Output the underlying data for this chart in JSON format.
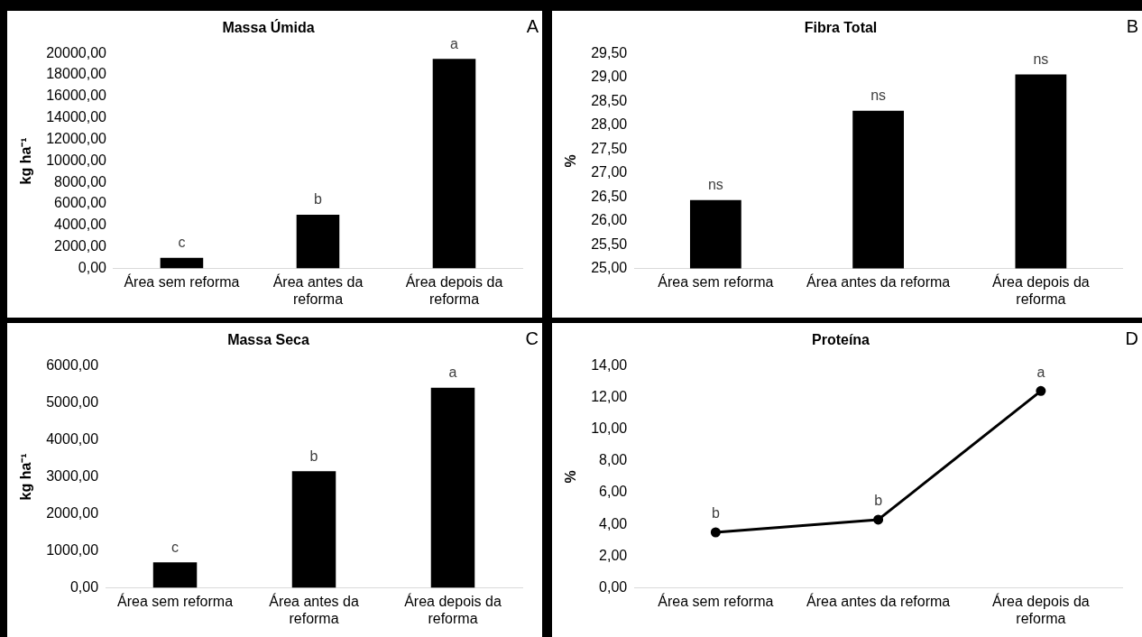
{
  "chart_data": [
    {
      "type": "bar",
      "title": "Massa Úmida",
      "ylabel": "kg ha⁻¹",
      "categories": [
        "Área sem reforma",
        "Área antes da reforma",
        "Área depois da reforma"
      ],
      "values": [
        1000,
        5000,
        19500
      ],
      "color": "#000000",
      "ylim": [
        0,
        20000
      ],
      "yticks": [
        {
          "value": 0,
          "label": "0,00"
        },
        {
          "value": 2000,
          "label": "2000,00"
        },
        {
          "value": 4000,
          "label": "4000,00"
        },
        {
          "value": 6000,
          "label": "6000,00"
        },
        {
          "value": 8000,
          "label": "8000,00"
        },
        {
          "value": 10000,
          "label": "10000,00"
        },
        {
          "value": 12000,
          "label": "12000,00"
        },
        {
          "value": 14000,
          "label": "14000,00"
        },
        {
          "value": 16000,
          "label": "16000,00"
        },
        {
          "value": 18000,
          "label": "18000,00"
        },
        {
          "value": 20000,
          "label": "20000,00"
        }
      ],
      "grid": false,
      "legend": false,
      "annotations": [
        "A",
        {
          "text": "c",
          "x": "Área sem reforma",
          "y": 1000
        },
        {
          "text": "b",
          "x": "Área antes da reforma",
          "y": 5000
        },
        {
          "text": "a",
          "x": "Área depois da reforma",
          "y": 19500
        }
      ]
    },
    {
      "type": "bar",
      "title": "Fibra Total",
      "ylabel": "%",
      "categories": [
        "Área sem reforma",
        "Área antes da reforma",
        "Área depois da reforma"
      ],
      "values": [
        26.43,
        28.3,
        29.06
      ],
      "color": "#000000",
      "ylim": [
        25,
        29.5
      ],
      "yticks": [
        {
          "value": 25,
          "label": "25,00"
        },
        {
          "value": 25.5,
          "label": "25,50"
        },
        {
          "value": 26,
          "label": "26,00"
        },
        {
          "value": 26.5,
          "label": "26,50"
        },
        {
          "value": 27,
          "label": "27,00"
        },
        {
          "value": 27.5,
          "label": "27,50"
        },
        {
          "value": 28,
          "label": "28,00"
        },
        {
          "value": 28.5,
          "label": "28,50"
        },
        {
          "value": 29,
          "label": "29,00"
        },
        {
          "value": 29.5,
          "label": "29,50"
        }
      ],
      "grid": false,
      "legend": false,
      "annotations": [
        "B",
        {
          "text": "ns",
          "x": "Área sem reforma",
          "y": 26.43
        },
        {
          "text": "ns",
          "x": "Área antes da reforma",
          "y": 28.3
        },
        {
          "text": "ns",
          "x": "Área depois da reforma",
          "y": 29.06
        }
      ]
    },
    {
      "type": "bar",
      "title": "Massa Seca",
      "ylabel": "kg ha⁻¹",
      "categories": [
        "Área sem reforma",
        "Área antes da reforma",
        "Área depois da reforma"
      ],
      "values": [
        690,
        3150,
        5400
      ],
      "color": "#000000",
      "ylim": [
        0,
        6000
      ],
      "yticks": [
        {
          "value": 0,
          "label": "0,00"
        },
        {
          "value": 1000,
          "label": "1000,00"
        },
        {
          "value": 2000,
          "label": "2000,00"
        },
        {
          "value": 3000,
          "label": "3000,00"
        },
        {
          "value": 4000,
          "label": "4000,00"
        },
        {
          "value": 5000,
          "label": "5000,00"
        },
        {
          "value": 6000,
          "label": "6000,00"
        }
      ],
      "grid": false,
      "legend": false,
      "annotations": [
        "C",
        {
          "text": "c",
          "x": "Área sem reforma",
          "y": 690
        },
        {
          "text": "b",
          "x": "Área antes da reforma",
          "y": 3150
        },
        {
          "text": "a",
          "x": "Área depois da reforma",
          "y": 5400
        }
      ]
    },
    {
      "type": "line",
      "title": "Proteína",
      "ylabel": "%",
      "categories": [
        "Área sem reforma",
        "Área antes da reforma",
        "Área depois da reforma"
      ],
      "values": [
        3.5,
        4.3,
        12.4
      ],
      "color": "#000000",
      "marker": "circle",
      "line_style": "solid",
      "ylim": [
        0,
        14
      ],
      "yticks": [
        {
          "value": 0,
          "label": "0,00"
        },
        {
          "value": 2,
          "label": "2,00"
        },
        {
          "value": 4,
          "label": "4,00"
        },
        {
          "value": 6,
          "label": "6,00"
        },
        {
          "value": 8,
          "label": "8,00"
        },
        {
          "value": 10,
          "label": "10,00"
        },
        {
          "value": 12,
          "label": "12,00"
        },
        {
          "value": 14,
          "label": "14,00"
        }
      ],
      "grid": false,
      "legend": false,
      "annotations": [
        "D",
        {
          "text": "b",
          "x": "Área sem reforma",
          "y": 3.5
        },
        {
          "text": "b",
          "x": "Área antes da reforma",
          "y": 4.3
        },
        {
          "text": "a",
          "x": "Área depois da reforma",
          "y": 12.4
        }
      ]
    }
  ]
}
